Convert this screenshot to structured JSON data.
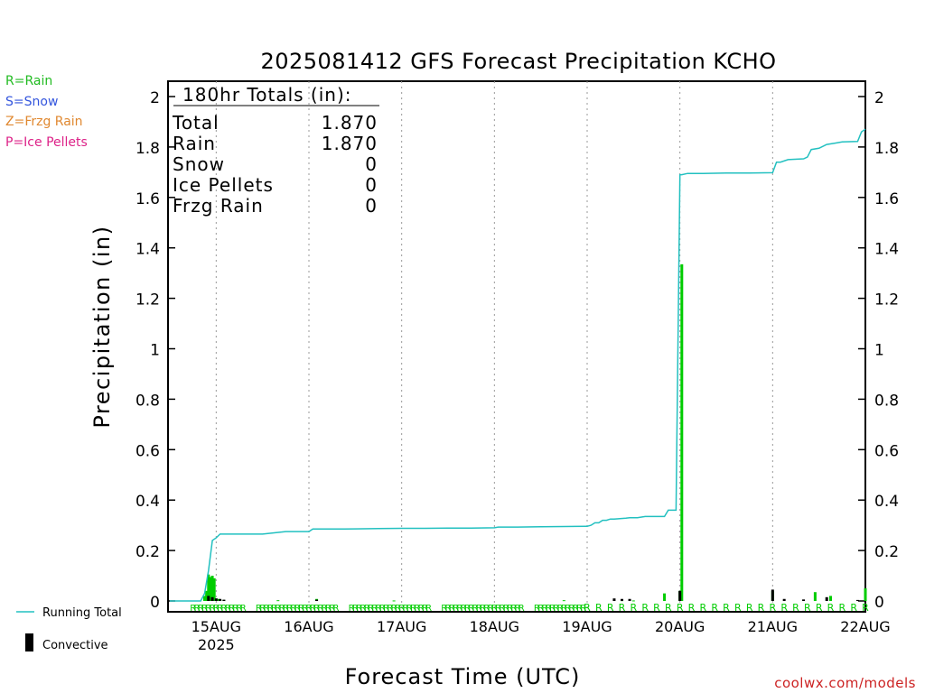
{
  "chart_data": {
    "type": "bar",
    "title": "2025081412 GFS Forecast Precipitation KCHO",
    "xlabel": "Forecast Time (UTC)",
    "ylabel": "Precipitation (in)",
    "ylim": [
      0,
      2
    ],
    "y_ticks": [
      "0",
      "0.2",
      "0.4",
      "0.6",
      "0.8",
      "1",
      "1.2",
      "1.4",
      "1.6",
      "1.8",
      "2"
    ],
    "x_unit": "forecast hour (0 = 2025-08-14 12 UTC)",
    "xlim": [
      0,
      180
    ],
    "x_ticks": [
      {
        "hour": 12,
        "label": "15AUG",
        "sublabel": "2025"
      },
      {
        "hour": 36,
        "label": "16AUG",
        "sublabel": ""
      },
      {
        "hour": 60,
        "label": "17AUG",
        "sublabel": ""
      },
      {
        "hour": 84,
        "label": "18AUG",
        "sublabel": ""
      },
      {
        "hour": 108,
        "label": "19AUG",
        "sublabel": ""
      },
      {
        "hour": 132,
        "label": "20AUG",
        "sublabel": ""
      },
      {
        "hour": 156,
        "label": "21AUG",
        "sublabel": ""
      },
      {
        "hour": 180,
        "label": "22AUG",
        "sublabel": ""
      }
    ],
    "grid": {
      "vertical_dotted": true,
      "horizontal": false
    },
    "series": [
      {
        "name": "Running Total",
        "type": "line",
        "color": "#22c0c0",
        "x": [
          0,
          8,
          9,
          10,
          11,
          12,
          13,
          18,
          24,
          30,
          36,
          37,
          42,
          48,
          54,
          60,
          66,
          72,
          78,
          84,
          85,
          90,
          96,
          102,
          108,
          109,
          110,
          111,
          112,
          113,
          114,
          115,
          118,
          119,
          120,
          121,
          123,
          128,
          129,
          130,
          131,
          132,
          132.5,
          134,
          138,
          144,
          150,
          156,
          157,
          158,
          160,
          164,
          165,
          166,
          168,
          170,
          172,
          174,
          178,
          179,
          180
        ],
        "y": [
          0,
          0,
          0.03,
          0.12,
          0.24,
          0.25,
          0.265,
          0.265,
          0.265,
          0.275,
          0.275,
          0.285,
          0.285,
          0.286,
          0.287,
          0.288,
          0.288,
          0.289,
          0.289,
          0.29,
          0.293,
          0.293,
          0.294,
          0.295,
          0.296,
          0.3,
          0.31,
          0.31,
          0.32,
          0.32,
          0.325,
          0.325,
          0.328,
          0.33,
          0.33,
          0.33,
          0.335,
          0.335,
          0.36,
          0.36,
          0.36,
          1.69,
          1.69,
          1.695,
          1.695,
          1.697,
          1.697,
          1.698,
          1.74,
          1.74,
          1.75,
          1.753,
          1.76,
          1.79,
          1.795,
          1.81,
          1.815,
          1.82,
          1.822,
          1.86,
          1.87
        ]
      },
      {
        "name": "Rain",
        "type": "bar",
        "color": "#00cc00",
        "x": [
          9,
          9.5,
          10,
          10.5,
          11,
          11.5,
          12,
          12.5,
          13,
          14,
          28,
          38,
          58,
          102,
          117,
          120,
          128,
          132,
          132.5,
          156,
          167,
          171,
          180
        ],
        "y": [
          0.02,
          0.04,
          0.105,
          0.095,
          0.1,
          0.09,
          0.01,
          0.008,
          0.005,
          0.004,
          0.003,
          0.008,
          0.002,
          0.003,
          0.003,
          0.002,
          0.03,
          0.04,
          1.335,
          0.04,
          0.035,
          0.02,
          0.05
        ]
      },
      {
        "name": "Convective",
        "type": "bar",
        "color": "#000000",
        "x": [
          10,
          11,
          12,
          13,
          14,
          38,
          115,
          117,
          119,
          132,
          156,
          159,
          164,
          170,
          178
        ],
        "y": [
          0.02,
          0.015,
          0.01,
          0.008,
          0.005,
          0.005,
          0.01,
          0.008,
          0.008,
          0.04,
          0.045,
          0.008,
          0.006,
          0.015,
          0.004
        ]
      }
    ],
    "precip_type_markers": {
      "symbol": "R",
      "color": "#00cc00",
      "hours_dense_from": 6,
      "hours_dense_to": 108,
      "hours_sparse_from": 108,
      "hours_sparse_to": 180
    },
    "totals_box": {
      "heading": "180hr Totals (in):",
      "rows": [
        {
          "label": "Total",
          "value": "1.870"
        },
        {
          "label": "Rain",
          "value": "1.870"
        },
        {
          "label": "Snow",
          "value": "0"
        },
        {
          "label": "Ice Pellets",
          "value": "0"
        },
        {
          "label": "Frzg Rain",
          "value": "0"
        }
      ]
    }
  },
  "type_legend": [
    {
      "text": "R=Rain",
      "color": "#22bb22"
    },
    {
      "text": "S=Snow",
      "color": "#3355dd"
    },
    {
      "text": "Z=Frzg Rain",
      "color": "#e08830"
    },
    {
      "text": "P=Ice Pellets",
      "color": "#dd2288"
    }
  ],
  "series_legend": {
    "running_total_label": "Running Total",
    "convective_label": "Convective"
  },
  "credit": "coolwx.com/models"
}
